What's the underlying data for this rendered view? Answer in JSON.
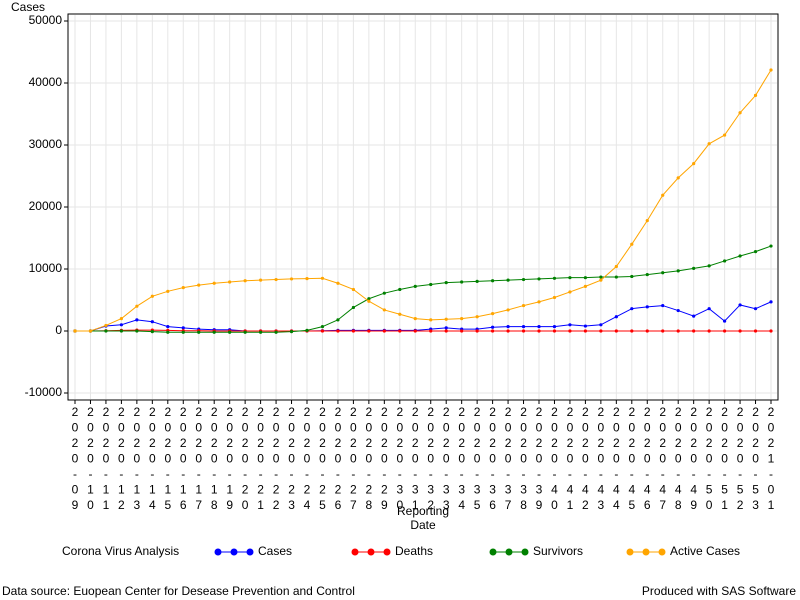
{
  "chart_data": {
    "type": "line",
    "y_label": "Cases",
    "x_label": [
      "Reporting",
      "Date"
    ],
    "legend_title": "Corona Virus Analysis",
    "footnote_left": "Data source: Euopean Center for Desease Prevention and Control",
    "footnote_right": "Produced with SAS Software",
    "categories": [
      "2020-09",
      "2020-10",
      "2020-11",
      "2020-12",
      "2020-13",
      "2020-14",
      "2020-15",
      "2020-16",
      "2020-17",
      "2020-18",
      "2020-19",
      "2020-20",
      "2020-21",
      "2020-22",
      "2020-23",
      "2020-24",
      "2020-25",
      "2020-26",
      "2020-27",
      "2020-28",
      "2020-29",
      "2020-30",
      "2020-31",
      "2020-32",
      "2020-33",
      "2020-34",
      "2020-35",
      "2020-36",
      "2020-37",
      "2020-38",
      "2020-39",
      "2020-40",
      "2020-41",
      "2020-42",
      "2020-43",
      "2020-44",
      "2020-45",
      "2020-46",
      "2020-47",
      "2020-48",
      "2020-49",
      "2020-50",
      "2020-51",
      "2020-52",
      "2020-53",
      "2021-01"
    ],
    "series": [
      {
        "name": "Cases",
        "color": "#0000ff",
        "values": [
          0,
          0,
          800,
          1000,
          1800,
          1500,
          700,
          500,
          300,
          200,
          200,
          0,
          0,
          0,
          0,
          0,
          50,
          100,
          100,
          100,
          100,
          100,
          100,
          300,
          500,
          300,
          300,
          600,
          700,
          700,
          700,
          700,
          1000,
          800,
          1000,
          2300,
          3600,
          3900,
          4100,
          3300,
          2400,
          3600,
          1600,
          4200,
          3600,
          4700
        ]
      },
      {
        "name": "Deaths",
        "color": "#ff0000",
        "values": [
          0,
          0,
          50,
          100,
          150,
          150,
          100,
          50,
          50,
          0,
          0,
          0,
          0,
          0,
          0,
          0,
          0,
          0,
          0,
          0,
          0,
          0,
          0,
          0,
          0,
          0,
          0,
          0,
          0,
          0,
          0,
          0,
          0,
          0,
          0,
          0,
          0,
          0,
          0,
          0,
          0,
          0,
          0,
          0,
          0,
          0
        ]
      },
      {
        "name": "Survivors",
        "color": "#008000",
        "values": [
          0,
          0,
          0,
          0,
          0,
          -100,
          -200,
          -200,
          -200,
          -200,
          -200,
          -200,
          -200,
          -200,
          -100,
          100,
          700,
          1800,
          3800,
          5200,
          6100,
          6700,
          7200,
          7500,
          7800,
          7900,
          8000,
          8100,
          8200,
          8300,
          8400,
          8500,
          8600,
          8600,
          8700,
          8700,
          8800,
          9100,
          9400,
          9700,
          10100,
          10500,
          11300,
          12100,
          12800,
          13700
        ]
      },
      {
        "name": "Active Cases",
        "color": "#ffa500",
        "values": [
          0,
          0,
          900,
          2000,
          4000,
          5600,
          6400,
          7000,
          7400,
          7700,
          7900,
          8100,
          8200,
          8300,
          8400,
          8450,
          8500,
          7700,
          6700,
          4800,
          3400,
          2700,
          2000,
          1800,
          1900,
          2000,
          2300,
          2800,
          3400,
          4100,
          4700,
          5400,
          6300,
          7200,
          8200,
          10400,
          14000,
          17800,
          21900,
          24700,
          27000,
          30200,
          31600,
          35200,
          38000,
          42100
        ]
      }
    ],
    "ylim": [
      -10000,
      50000
    ],
    "yticks": [
      -10000,
      0,
      10000,
      20000,
      30000,
      40000,
      50000
    ],
    "grid": true
  }
}
